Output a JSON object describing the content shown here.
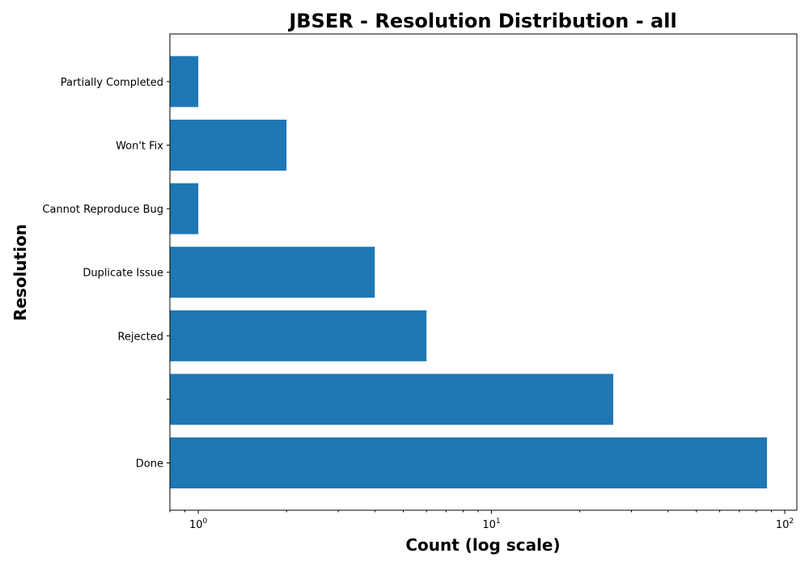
{
  "chart_data": {
    "type": "bar",
    "orientation": "horizontal",
    "title": "JBSER - Resolution Distribution - all",
    "xlabel": "Count (log scale)",
    "ylabel": "Resolution",
    "xscale": "log",
    "xlim": [
      0.8,
      110
    ],
    "xticks": [
      {
        "value": 1,
        "base": "10",
        "exp": "0"
      },
      {
        "value": 10,
        "base": "10",
        "exp": "1"
      },
      {
        "value": 100,
        "base": "10",
        "exp": "2"
      }
    ],
    "categories": [
      "Done",
      "",
      "Rejected",
      "Duplicate Issue",
      "Cannot Reproduce Bug",
      "Won't Fix",
      "Partially Completed"
    ],
    "values": [
      87,
      26,
      6,
      4,
      1,
      2,
      1
    ],
    "bar_color": "#1f77b4",
    "grid": false,
    "legend": "none"
  }
}
